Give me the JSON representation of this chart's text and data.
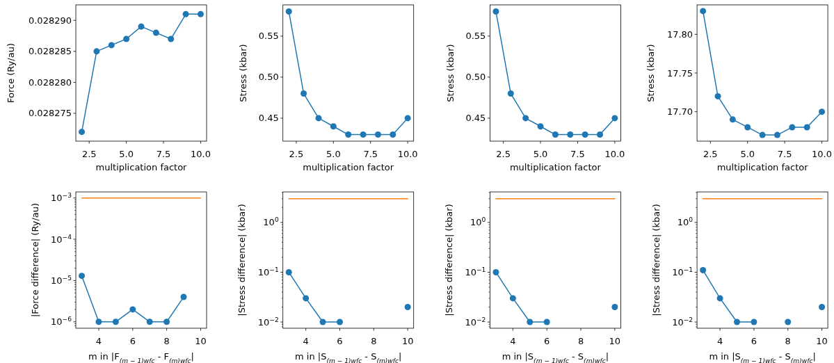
{
  "chart_data": [
    {
      "type": "line",
      "ylabel": "Force (Ry/au)",
      "xlabel": "multiplication factor",
      "x": [
        2,
        3,
        4,
        5,
        6,
        7,
        8,
        9,
        10
      ],
      "xlim": [
        1.6,
        10.4
      ],
      "xticks": [
        {
          "value": 2.5,
          "label": "2.5"
        },
        {
          "value": 5,
          "label": "5.0"
        },
        {
          "value": 7.5,
          "label": "7.5"
        },
        {
          "value": 10,
          "label": "10.0"
        }
      ],
      "ylim": [
        0.0282705,
        0.0282925
      ],
      "yticks": [
        {
          "value": 0.028275,
          "label": "0.028275"
        },
        {
          "value": 0.02828,
          "label": "0.028280"
        },
        {
          "value": 0.028285,
          "label": "0.028285"
        },
        {
          "value": 0.02829,
          "label": "0.028290"
        }
      ],
      "series": [
        {
          "color": "#1f77b4",
          "marker": "circle",
          "values": [
            0.028272,
            0.028285,
            0.028286,
            0.028287,
            0.028289,
            0.028288,
            0.028287,
            0.028291,
            0.028291
          ]
        }
      ]
    },
    {
      "type": "line",
      "ylabel": "Stress (kbar)",
      "xlabel": "multiplication factor",
      "x": [
        2,
        3,
        4,
        5,
        6,
        7,
        8,
        9,
        10
      ],
      "xlim": [
        1.6,
        10.4
      ],
      "xticks": [
        {
          "value": 2.5,
          "label": "2.5"
        },
        {
          "value": 5,
          "label": "5.0"
        },
        {
          "value": 7.5,
          "label": "7.5"
        },
        {
          "value": 10,
          "label": "10.0"
        }
      ],
      "ylim": [
        0.422,
        0.588
      ],
      "yticks": [
        {
          "value": 0.45,
          "label": "0.45"
        },
        {
          "value": 0.5,
          "label": "0.50"
        },
        {
          "value": 0.55,
          "label": "0.55"
        }
      ],
      "series": [
        {
          "color": "#1f77b4",
          "marker": "circle",
          "values": [
            0.58,
            0.48,
            0.45,
            0.44,
            0.43,
            0.43,
            0.43,
            0.43,
            0.45
          ]
        }
      ]
    },
    {
      "type": "line",
      "ylabel": "Stress (kbar)",
      "xlabel": "multiplication factor",
      "x": [
        2,
        3,
        4,
        5,
        6,
        7,
        8,
        9,
        10
      ],
      "xlim": [
        1.6,
        10.4
      ],
      "xticks": [
        {
          "value": 2.5,
          "label": "2.5"
        },
        {
          "value": 5,
          "label": "5.0"
        },
        {
          "value": 7.5,
          "label": "7.5"
        },
        {
          "value": 10,
          "label": "10.0"
        }
      ],
      "ylim": [
        0.422,
        0.588
      ],
      "yticks": [
        {
          "value": 0.45,
          "label": "0.45"
        },
        {
          "value": 0.5,
          "label": "0.50"
        },
        {
          "value": 0.55,
          "label": "0.55"
        }
      ],
      "series": [
        {
          "color": "#1f77b4",
          "marker": "circle",
          "values": [
            0.58,
            0.48,
            0.45,
            0.44,
            0.43,
            0.43,
            0.43,
            0.43,
            0.45
          ]
        }
      ]
    },
    {
      "type": "line",
      "ylabel": "Stress (kbar)",
      "xlabel": "multiplication factor",
      "x": [
        2,
        3,
        4,
        5,
        6,
        7,
        8,
        9,
        10
      ],
      "xlim": [
        1.6,
        10.4
      ],
      "xticks": [
        {
          "value": 2.5,
          "label": "2.5"
        },
        {
          "value": 5,
          "label": "5.0"
        },
        {
          "value": 7.5,
          "label": "7.5"
        },
        {
          "value": 10,
          "label": "10.0"
        }
      ],
      "ylim": [
        17.662,
        17.838
      ],
      "yticks": [
        {
          "value": 17.7,
          "label": "17.70"
        },
        {
          "value": 17.75,
          "label": "17.75"
        },
        {
          "value": 17.8,
          "label": "17.80"
        }
      ],
      "series": [
        {
          "color": "#1f77b4",
          "marker": "circle",
          "values": [
            17.83,
            17.72,
            17.69,
            17.68,
            17.67,
            17.67,
            17.68,
            17.68,
            17.7
          ]
        }
      ]
    },
    {
      "type": "line",
      "log": true,
      "ylabel": "|Force difference| (Ry/au)",
      "xlabel": "m in |F$_{(m − 1)wfc}$ - F$_{(m)wfc}$|",
      "xlim": [
        2.65,
        10.35
      ],
      "xticks": [
        4,
        6,
        8,
        10
      ],
      "ylim": [
        7e-07,
        0.0014
      ],
      "yticks": [
        {
          "value": 8e-07,
          "label": null
        },
        {
          "value": 9e-07,
          "label": null
        },
        {
          "value": 1e-06,
          "label": "10$^{−6}$"
        },
        {
          "value": 2e-06,
          "label": null
        },
        {
          "value": 3e-06,
          "label": null
        },
        {
          "value": 4e-06,
          "label": null
        },
        {
          "value": 5e-06,
          "label": null
        },
        {
          "value": 6e-06,
          "label": null
        },
        {
          "value": 7e-06,
          "label": null
        },
        {
          "value": 8e-06,
          "label": null
        },
        {
          "value": 9e-06,
          "label": null
        },
        {
          "value": 1e-05,
          "label": "10$^{−5}$"
        },
        {
          "value": 2e-05,
          "label": null
        },
        {
          "value": 3e-05,
          "label": null
        },
        {
          "value": 4e-05,
          "label": null
        },
        {
          "value": 5e-05,
          "label": null
        },
        {
          "value": 6e-05,
          "label": null
        },
        {
          "value": 7e-05,
          "label": null
        },
        {
          "value": 8e-05,
          "label": null
        },
        {
          "value": 9e-05,
          "label": null
        },
        {
          "value": 0.0001,
          "label": "10$^{−4}$"
        },
        {
          "value": 0.0002,
          "label": null
        },
        {
          "value": 0.0003,
          "label": null
        },
        {
          "value": 0.0004,
          "label": null
        },
        {
          "value": 0.0005,
          "label": null
        },
        {
          "value": 0.0006,
          "label": null
        },
        {
          "value": 0.0007,
          "label": null
        },
        {
          "value": 0.0008,
          "label": null
        },
        {
          "value": 0.0009,
          "label": null
        },
        {
          "value": 0.001,
          "label": "10$^{−3}$"
        }
      ],
      "series": [
        {
          "color": "#1f77b4",
          "marker": "circle",
          "x": [
            3,
            4,
            5,
            6,
            7,
            8,
            9
          ],
          "values": [
            1.3e-05,
            1e-06,
            1e-06,
            2e-06,
            1e-06,
            1e-06,
            4e-06
          ]
        },
        {
          "color": "#ff7f0e",
          "marker": "none",
          "x": [
            3,
            10
          ],
          "values": [
            0.001,
            0.001
          ]
        }
      ]
    },
    {
      "type": "line",
      "log": true,
      "ylabel": "|Stress difference| (kbar)",
      "xlabel": "m in |S$_{(m − 1)wfc}$ - S$_{(m)wfc}$|",
      "x": [
        3,
        4,
        5,
        6,
        7,
        8,
        9,
        10
      ],
      "xlim": [
        2.65,
        10.35
      ],
      "xticks": [
        4,
        6,
        8,
        10
      ],
      "ylim": [
        0.0075,
        4.1
      ],
      "yticks": [
        {
          "value": 0.008,
          "label": null
        },
        {
          "value": 0.009,
          "label": null
        },
        {
          "value": 0.01,
          "label": "10$^{−2}$"
        },
        {
          "value": 0.02,
          "label": null
        },
        {
          "value": 0.03,
          "label": null
        },
        {
          "value": 0.04,
          "label": null
        },
        {
          "value": 0.05,
          "label": null
        },
        {
          "value": 0.06,
          "label": null
        },
        {
          "value": 0.07,
          "label": null
        },
        {
          "value": 0.08,
          "label": null
        },
        {
          "value": 0.09,
          "label": null
        },
        {
          "value": 0.1,
          "label": "10$^{−1}$"
        },
        {
          "value": 0.2,
          "label": null
        },
        {
          "value": 0.3,
          "label": null
        },
        {
          "value": 0.4,
          "label": null
        },
        {
          "value": 0.5,
          "label": null
        },
        {
          "value": 0.6,
          "label": null
        },
        {
          "value": 0.7,
          "label": null
        },
        {
          "value": 0.8,
          "label": null
        },
        {
          "value": 0.9,
          "label": null
        },
        {
          "value": 1,
          "label": "10$^{0}$"
        },
        {
          "value": 2,
          "label": null
        },
        {
          "value": 3,
          "label": null
        },
        {
          "value": 4,
          "label": null
        }
      ],
      "series": [
        {
          "color": "#1f77b4",
          "marker": "circle",
          "values": [
            0.1,
            0.03,
            0.01,
            0.01,
            null,
            null,
            null,
            0.02
          ]
        },
        {
          "color": "#ff7f0e",
          "marker": "none",
          "x": [
            3,
            10
          ],
          "values": [
            3,
            3
          ]
        }
      ]
    },
    {
      "type": "line",
      "log": true,
      "ylabel": "|Stress difference| (kbar)",
      "xlabel": "m in |S$_{(m − 1)wfc}$ - S$_{(m)wfc}$|",
      "x": [
        3,
        4,
        5,
        6,
        7,
        8,
        9,
        10
      ],
      "xlim": [
        2.65,
        10.35
      ],
      "xticks": [
        4,
        6,
        8,
        10
      ],
      "ylim": [
        0.0075,
        4.1
      ],
      "yticks": [
        {
          "value": 0.008,
          "label": null
        },
        {
          "value": 0.009,
          "label": null
        },
        {
          "value": 0.01,
          "label": "10$^{−2}$"
        },
        {
          "value": 0.02,
          "label": null
        },
        {
          "value": 0.03,
          "label": null
        },
        {
          "value": 0.04,
          "label": null
        },
        {
          "value": 0.05,
          "label": null
        },
        {
          "value": 0.06,
          "label": null
        },
        {
          "value": 0.07,
          "label": null
        },
        {
          "value": 0.08,
          "label": null
        },
        {
          "value": 0.09,
          "label": null
        },
        {
          "value": 0.1,
          "label": "10$^{−1}$"
        },
        {
          "value": 0.2,
          "label": null
        },
        {
          "value": 0.3,
          "label": null
        },
        {
          "value": 0.4,
          "label": null
        },
        {
          "value": 0.5,
          "label": null
        },
        {
          "value": 0.6,
          "label": null
        },
        {
          "value": 0.7,
          "label": null
        },
        {
          "value": 0.8,
          "label": null
        },
        {
          "value": 0.9,
          "label": null
        },
        {
          "value": 1,
          "label": "10$^{0}$"
        },
        {
          "value": 2,
          "label": null
        },
        {
          "value": 3,
          "label": null
        },
        {
          "value": 4,
          "label": null
        }
      ],
      "series": [
        {
          "color": "#1f77b4",
          "marker": "circle",
          "values": [
            0.1,
            0.03,
            0.01,
            0.01,
            null,
            null,
            null,
            0.02
          ]
        },
        {
          "color": "#ff7f0e",
          "marker": "none",
          "x": [
            3,
            10
          ],
          "values": [
            3,
            3
          ]
        }
      ]
    },
    {
      "type": "line",
      "log": true,
      "ylabel": "|Stress difference| (kbar)",
      "xlabel": "m in |S$_{(m − 1)wfc}$ - S$_{(m)wfc}$|",
      "x": [
        3,
        4,
        5,
        6,
        7,
        8,
        9,
        10
      ],
      "xlim": [
        2.65,
        10.35
      ],
      "xticks": [
        4,
        6,
        8,
        10
      ],
      "ylim": [
        0.0075,
        4.1
      ],
      "yticks": [
        {
          "value": 0.008,
          "label": null
        },
        {
          "value": 0.009,
          "label": null
        },
        {
          "value": 0.01,
          "label": "10$^{−2}$"
        },
        {
          "value": 0.02,
          "label": null
        },
        {
          "value": 0.03,
          "label": null
        },
        {
          "value": 0.04,
          "label": null
        },
        {
          "value": 0.05,
          "label": null
        },
        {
          "value": 0.06,
          "label": null
        },
        {
          "value": 0.07,
          "label": null
        },
        {
          "value": 0.08,
          "label": null
        },
        {
          "value": 0.09,
          "label": null
        },
        {
          "value": 0.1,
          "label": "10$^{−1}$"
        },
        {
          "value": 0.2,
          "label": null
        },
        {
          "value": 0.3,
          "label": null
        },
        {
          "value": 0.4,
          "label": null
        },
        {
          "value": 0.5,
          "label": null
        },
        {
          "value": 0.6,
          "label": null
        },
        {
          "value": 0.7,
          "label": null
        },
        {
          "value": 0.8,
          "label": null
        },
        {
          "value": 0.9,
          "label": null
        },
        {
          "value": 1,
          "label": "10$^{0}$"
        },
        {
          "value": 2,
          "label": null
        },
        {
          "value": 3,
          "label": null
        },
        {
          "value": 4,
          "label": null
        }
      ],
      "series": [
        {
          "color": "#1f77b4",
          "marker": "circle",
          "values": [
            0.11,
            0.03,
            0.01,
            0.01,
            null,
            0.01,
            null,
            0.02
          ]
        },
        {
          "color": "#ff7f0e",
          "marker": "none",
          "x": [
            3,
            10
          ],
          "values": [
            3,
            3
          ]
        }
      ]
    }
  ]
}
